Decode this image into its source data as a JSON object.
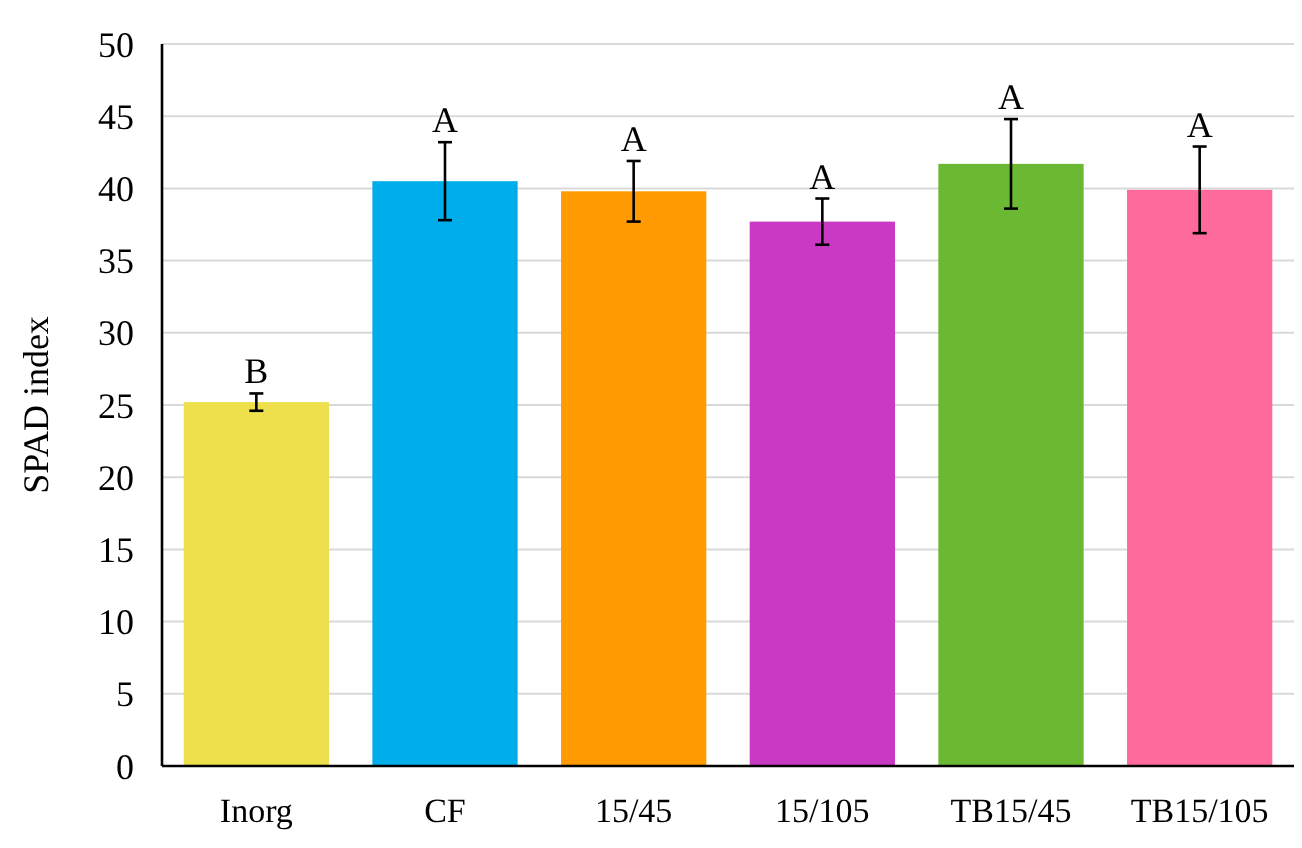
{
  "chart_data": {
    "type": "bar",
    "ylabel": "SPAD index",
    "categories": [
      "Inorg",
      "CF",
      "15/45",
      "15/105",
      "TB15/45",
      "TB15/105"
    ],
    "values": [
      25.2,
      40.5,
      39.8,
      37.7,
      41.7,
      39.9
    ],
    "errors": [
      0.6,
      2.7,
      2.1,
      1.6,
      3.1,
      3.0
    ],
    "colors": [
      "#ede04c",
      "#00adeb",
      "#ff9a00",
      "#c939c4",
      "#6bb932",
      "#ff6a9c"
    ],
    "ylim": [
      0,
      50
    ],
    "yticks": [
      0,
      5,
      10,
      15,
      20,
      25,
      30,
      35,
      40,
      45,
      50
    ],
    "grid": "y",
    "annotations": [
      {
        "text": "B",
        "x": "Inorg",
        "y": 25.8
      },
      {
        "text": "A",
        "x": "CF",
        "y": 43.2
      },
      {
        "text": "A",
        "x": "15/45",
        "y": 41.9
      },
      {
        "text": "A",
        "x": "15/105",
        "y": 39.3
      },
      {
        "text": "A",
        "x": "TB15/45",
        "y": 44.8
      },
      {
        "text": "A",
        "x": "TB15/105",
        "y": 42.9
      }
    ]
  }
}
